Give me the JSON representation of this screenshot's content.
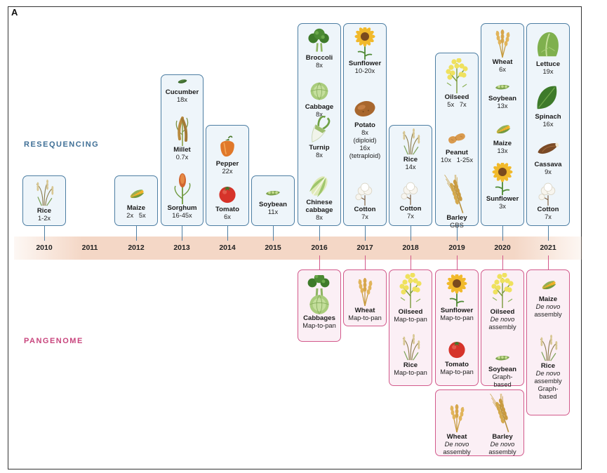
{
  "panel_label": "A",
  "sections": {
    "resequencing": "RESEQUENCING",
    "pangenome": "PANGENOME"
  },
  "colors": {
    "resequencing": "#4d7ea3",
    "pangenome": "#d2598b",
    "timeline": "#f4d7c6"
  },
  "timeline": {
    "years": [
      "2010",
      "2011",
      "2012",
      "2013",
      "2014",
      "2015",
      "2016",
      "2017",
      "2018",
      "2019",
      "2020",
      "2021"
    ]
  },
  "resequencing": [
    {
      "year": "2010",
      "crops": [
        {
          "name": "Rice",
          "info": "1-2x",
          "icon": "rice-icon"
        }
      ]
    },
    {
      "year": "2012",
      "crops": [
        {
          "name": "Maize",
          "info": "2x   5x",
          "icon": "maize-icon"
        }
      ]
    },
    {
      "year": "2013",
      "crops": [
        {
          "name": "Cucumber",
          "info": "18x",
          "icon": "cucumber-icon"
        },
        {
          "name": "Millet",
          "info": "0.7x",
          "icon": "millet-icon"
        },
        {
          "name": "Sorghum",
          "info": "16-45x",
          "icon": "sorghum-icon"
        }
      ]
    },
    {
      "year": "2014",
      "crops": [
        {
          "name": "Pepper",
          "info": "22x",
          "icon": "pepper-icon"
        },
        {
          "name": "Tomato",
          "info": "6x",
          "icon": "tomato-icon"
        }
      ]
    },
    {
      "year": "2015",
      "crops": [
        {
          "name": "Soybean",
          "info": "11x",
          "icon": "soybean-icon"
        }
      ]
    },
    {
      "year": "2016",
      "crops": [
        {
          "name": "Broccoli",
          "info": "8x",
          "icon": "broccoli-icon"
        },
        {
          "name": "Cabbage",
          "info": "8x",
          "icon": "cabbage-icon"
        },
        {
          "name": "Turnip",
          "info": "8x",
          "icon": "turnip-icon"
        },
        {
          "name": "Chinese cabbage",
          "name_lines": [
            "Chinese",
            "cabbage"
          ],
          "info": "8x",
          "icon": "chinese-cabbage-icon"
        }
      ]
    },
    {
      "year": "2017",
      "crops": [
        {
          "name": "Sunflower",
          "info": "10-20x",
          "icon": "sunflower-icon"
        },
        {
          "name": "Potato",
          "info_lines": [
            "8x",
            "(diploid)",
            "16x",
            "(tetraploid)"
          ],
          "icon": "potato-icon"
        },
        {
          "name": "Cotton",
          "info": "7x",
          "icon": "cotton-icon"
        }
      ]
    },
    {
      "year": "2018",
      "crops": [
        {
          "name": "Rice",
          "info": "14x",
          "icon": "rice-icon"
        },
        {
          "name": "Cotton",
          "info": "7x",
          "icon": "cotton-icon"
        }
      ]
    },
    {
      "year": "2019",
      "crops": [
        {
          "name": "Oilseed",
          "info": "5x   7x",
          "icon": "oilseed-icon"
        },
        {
          "name": "Peanut",
          "info": "10x   1-25x",
          "icon": "peanut-icon"
        },
        {
          "name": "Barley",
          "info": "GBS",
          "icon": "barley-icon"
        }
      ]
    },
    {
      "year": "2020",
      "crops": [
        {
          "name": "Wheat",
          "info": "6x",
          "icon": "wheat-icon"
        },
        {
          "name": "Soybean",
          "info": "13x",
          "icon": "soybean-icon"
        },
        {
          "name": "Maize",
          "info": "13x",
          "icon": "maize-icon"
        },
        {
          "name": "Sunflower",
          "info": "3x",
          "icon": "sunflower-icon"
        }
      ]
    },
    {
      "year": "2021",
      "crops": [
        {
          "name": "Lettuce",
          "info": "19x",
          "icon": "lettuce-icon"
        },
        {
          "name": "Spinach",
          "info": "16x",
          "icon": "spinach-icon"
        },
        {
          "name": "Cassava",
          "info": "9x",
          "icon": "cassava-icon"
        },
        {
          "name": "Cotton",
          "info": "7x",
          "icon": "cotton-icon"
        }
      ]
    }
  ],
  "pangenome": [
    {
      "year": "2016",
      "crops": [
        {
          "name": "Cabbages",
          "info": "Map-to-pan",
          "icon": "broccoli-cabbage-icon"
        }
      ]
    },
    {
      "year": "2017",
      "crops": [
        {
          "name": "Wheat",
          "info": "Map-to-pan",
          "icon": "wheat-icon"
        }
      ]
    },
    {
      "year": "2018",
      "crops": [
        {
          "name": "Oilseed",
          "info": "Map-to-pan",
          "icon": "oilseed-icon"
        },
        {
          "name": "Rice",
          "info": "Map-to-pan",
          "icon": "rice-icon"
        }
      ]
    },
    {
      "year": "2019",
      "crops": [
        {
          "name": "Sunflower",
          "info": "Map-to-pan",
          "icon": "sunflower-icon"
        },
        {
          "name": "Tomato",
          "info": "Map-to-pan",
          "icon": "tomato-icon"
        },
        {
          "name": "Wheat",
          "info_italic": "De novo",
          "info": "assembly",
          "icon": "wheat-icon"
        }
      ]
    },
    {
      "year": "2020",
      "crops": [
        {
          "name": "Oilseed",
          "info_italic": "De novo",
          "info": "assembly",
          "icon": "oilseed-icon"
        },
        {
          "name": "Soybean",
          "info_lines": [
            "Graph-",
            "based"
          ],
          "icon": "soybean-icon"
        },
        {
          "name": "Barley",
          "info_italic": "De novo",
          "info": "assembly",
          "icon": "barley-icon"
        }
      ]
    },
    {
      "year": "2021",
      "crops": [
        {
          "name": "Maize",
          "info_italic": "De novo",
          "info": "assembly",
          "icon": "maize-icon"
        },
        {
          "name": "Rice",
          "info_italic": "De novo",
          "info_lines": [
            "assembly",
            "Graph-",
            "based"
          ],
          "icon": "rice-icon"
        }
      ]
    }
  ]
}
